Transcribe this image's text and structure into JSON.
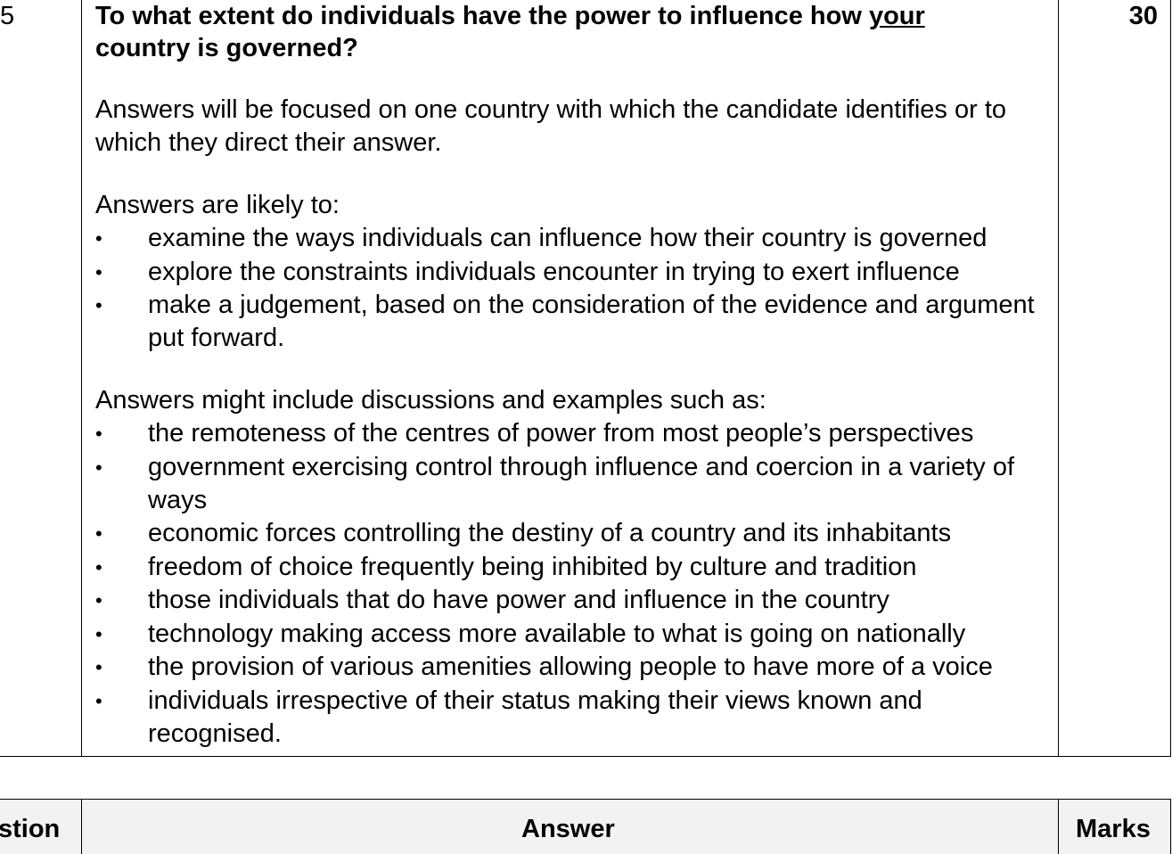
{
  "question_number": "5",
  "marks": "30",
  "question": {
    "before": "To what extent do individuals have the power to influence how ",
    "underlined": "your",
    "after": " country is governed?"
  },
  "intro_para": "Answers will be focused on one country with which the candidate identifies or to which they direct their answer.",
  "likely_heading": "Answers are likely to:",
  "likely_items": [
    "examine the ways individuals can influence how their country is governed",
    "explore the constraints individuals encounter in trying to exert influence",
    "make a judgement, based on the consideration of the evidence and argument put forward."
  ],
  "examples_heading": "Answers might include discussions and examples such as:",
  "example_items": [
    "the remoteness of the centres of power from most people’s perspectives",
    "government exercising control through influence and coercion in a variety of ways",
    "economic forces controlling the destiny of a country and its inhabitants",
    "freedom of choice frequently being inhibited by culture and tradition",
    "those individuals that do have power and influence in the country",
    "technology making access more available to what is going on nationally",
    "the provision of various amenities allowing people to have more of a voice",
    "individuals irrespective of their status making their views known and recognised."
  ],
  "bullet_glyph": "•",
  "header_row": {
    "question_label": "stion",
    "answer_label": "Answer",
    "marks_label": "Marks"
  }
}
